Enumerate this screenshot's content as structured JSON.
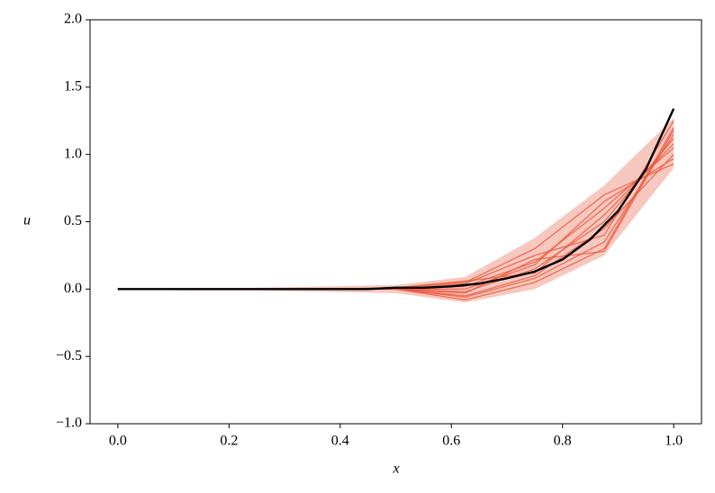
{
  "chart_data": {
    "type": "line",
    "x_label": "x",
    "y_label": "u",
    "x": [
      0,
      0.125,
      0.25,
      0.375,
      0.5,
      0.625,
      0.75,
      0.875,
      1.0
    ],
    "band": {
      "color": "#f4b6aa",
      "lower": [
        0,
        -0.01,
        -0.01,
        -0.02,
        -0.03,
        -0.1,
        0.0,
        0.25,
        0.9
      ],
      "upper": [
        0,
        0.01,
        0.01,
        0.02,
        0.03,
        0.09,
        0.38,
        0.77,
        1.27
      ]
    },
    "series": [
      {
        "color": "#e8583c",
        "values": [
          0,
          0,
          0,
          0,
          0,
          -0.05,
          0.1,
          0.45,
          1.0
        ]
      },
      {
        "color": "#e8583c",
        "values": [
          0,
          0,
          0,
          0,
          0.01,
          0.05,
          0.3,
          0.7,
          0.93
        ]
      },
      {
        "color": "#e8583c",
        "values": [
          0,
          0,
          0,
          0,
          0,
          -0.08,
          0.05,
          0.3,
          1.2
        ]
      },
      {
        "color": "#e8583c",
        "values": [
          0,
          0,
          0,
          0,
          0,
          0.02,
          0.2,
          0.6,
          1.05
        ]
      },
      {
        "color": "#e8583c",
        "values": [
          0,
          0,
          0,
          0,
          0,
          -0.02,
          0.15,
          0.5,
          1.12
        ]
      },
      {
        "color": "#e8583c",
        "values": [
          0,
          0,
          0,
          0,
          0,
          0.04,
          0.25,
          0.4,
          1.25
        ]
      },
      {
        "color": "#e8583c",
        "values": [
          0,
          0,
          0,
          0,
          0,
          -0.06,
          0.08,
          0.35,
          1.15
        ]
      },
      {
        "color": "#e8583c",
        "values": [
          0,
          0,
          0,
          0,
          0,
          0,
          0.18,
          0.65,
          0.97
        ]
      },
      {
        "color": "#e8583c",
        "values": [
          0,
          0,
          0,
          0,
          0.01,
          0.06,
          0.12,
          0.55,
          1.08
        ]
      },
      {
        "color": "#e8583c",
        "values": [
          0,
          0,
          0,
          0,
          0,
          -0.03,
          0.22,
          0.28,
          1.18
        ]
      }
    ],
    "exact": {
      "color": "#000000",
      "x": [
        0,
        0.05,
        0.1,
        0.15,
        0.2,
        0.25,
        0.3,
        0.35,
        0.4,
        0.45,
        0.5,
        0.55,
        0.6,
        0.65,
        0.7,
        0.75,
        0.8,
        0.85,
        0.9,
        0.95,
        1.0
      ],
      "values": [
        0,
        0,
        0,
        0,
        0,
        0,
        0,
        0,
        0,
        0,
        0.01,
        0.01,
        0.02,
        0.04,
        0.08,
        0.13,
        0.22,
        0.37,
        0.58,
        0.89,
        1.34
      ]
    },
    "xlim": [
      -0.05,
      1.05
    ],
    "ylim": [
      -1,
      2
    ],
    "xticks": [
      {
        "value": 0,
        "label": "0.0"
      },
      0.2,
      0.4,
      0.6,
      0.8,
      {
        "value": 1,
        "label": "1.0"
      }
    ],
    "yticks": [
      {
        "value": -1,
        "label": "−1.0"
      },
      {
        "value": -0.5,
        "label": "−0.5"
      },
      {
        "value": 0,
        "label": "0.0"
      },
      0.5,
      {
        "value": 1,
        "label": "1.0"
      },
      1.5,
      {
        "value": 2,
        "label": "2.0"
      }
    ]
  }
}
